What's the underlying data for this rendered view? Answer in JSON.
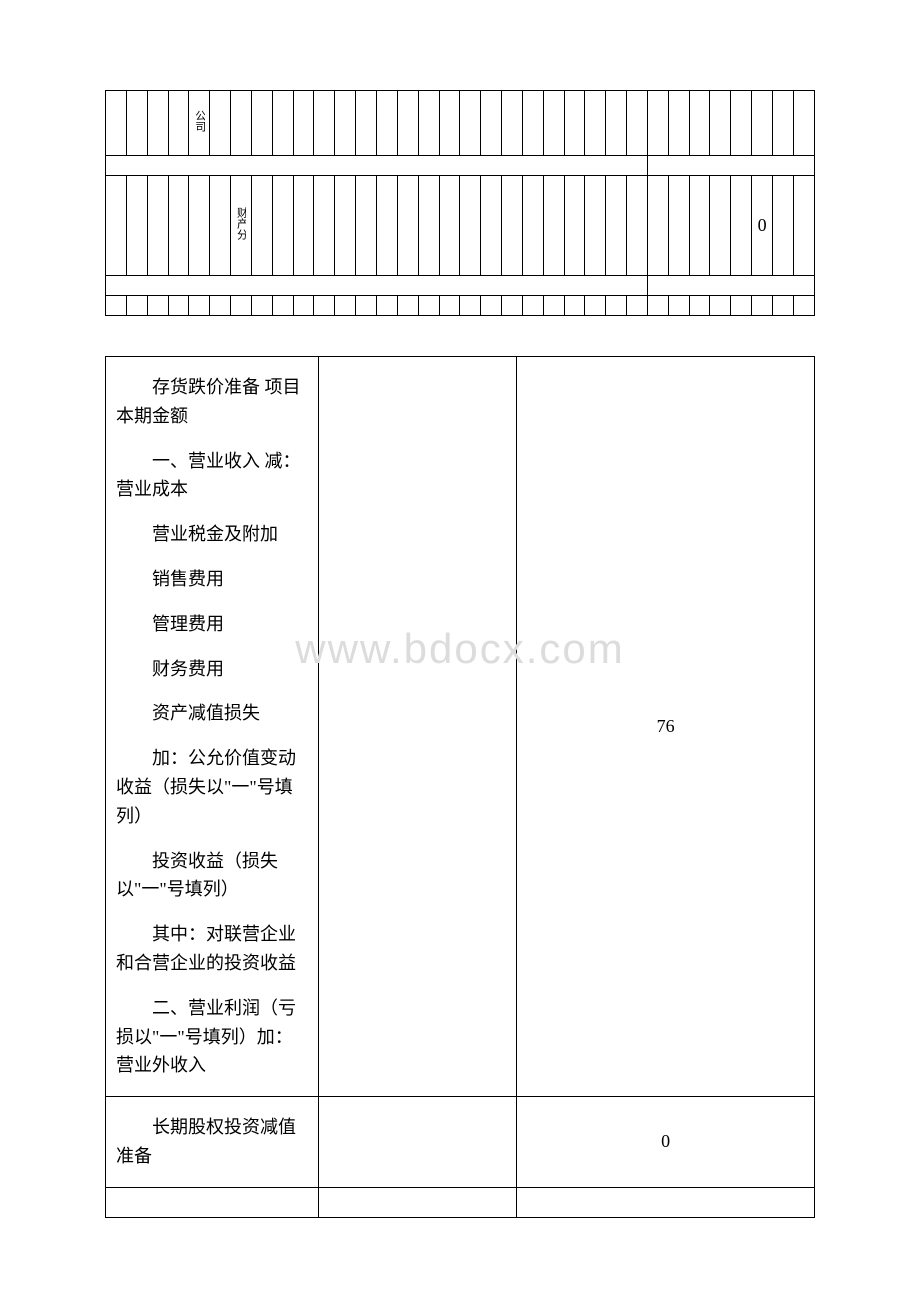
{
  "watermark": "www.bdocx.com",
  "top_table": {
    "row1_cell_text": "公司",
    "row2_cell_text": "财产分",
    "row2_value": "0"
  },
  "main_table": {
    "section1": {
      "items": [
        "存货跌价准备 项目 本期金额",
        "一、营业收入 减：营业成本",
        "营业税金及附加",
        "销售费用",
        "管理费用",
        "财务费用",
        "资产减值损失",
        "加：公允价值变动收益（损失以\"一\"号填列）",
        "投资收益（损失以\"一\"号填列）",
        "其中：对联营企业和合营企业的投资收益",
        "二、营业利润（亏损以\"一\"号填列）加：营业外收入"
      ],
      "value_col3": "76"
    },
    "section2": {
      "label": "长期股权投资减值准备",
      "value": "0"
    }
  }
}
